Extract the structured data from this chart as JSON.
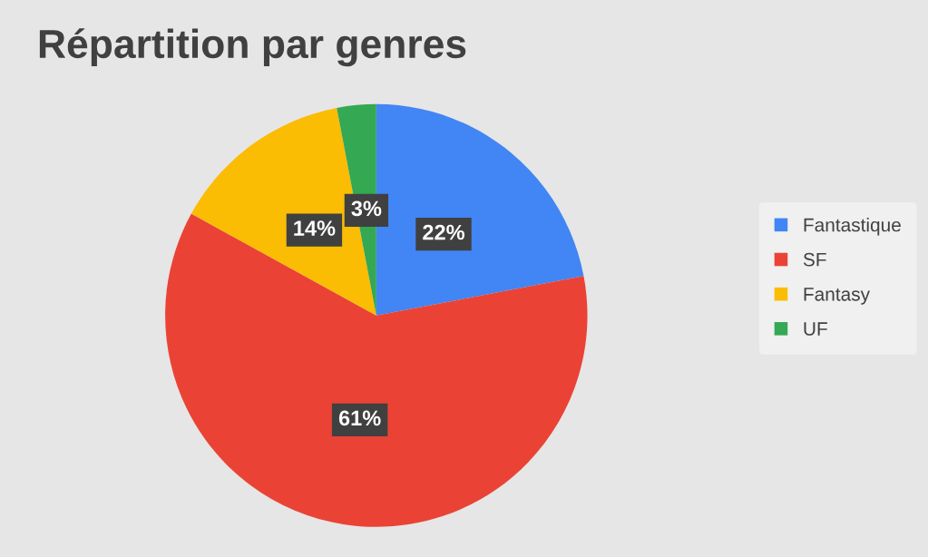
{
  "chart_data": {
    "type": "pie",
    "title": "Répartition par genres",
    "categories": [
      "Fantastique",
      "SF",
      "Fantasy",
      "UF"
    ],
    "values": [
      22,
      61,
      14,
      3
    ],
    "value_labels": [
      "22%",
      "61%",
      "14%",
      "3%"
    ],
    "colors": [
      "#4285f4",
      "#ea4335",
      "#fbbc04",
      "#34a853"
    ],
    "legend": "right"
  }
}
